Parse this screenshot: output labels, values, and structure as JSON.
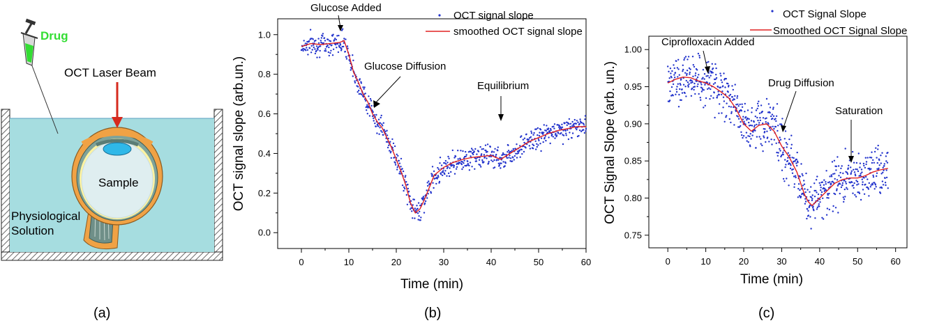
{
  "panel_a": {
    "drug_label": "Drug",
    "beam_label": "OCT Laser Beam",
    "sample_label": "Sample",
    "solution_label_1": "Physiological",
    "solution_label_2": "Solution",
    "panel_label": "(a)",
    "colors": {
      "drug": "#33dd33",
      "beam": "#d62a1e",
      "solution": "#a6dde0",
      "eye_outer": "#f0a245",
      "lens": "#2fb8e8"
    }
  },
  "chart_data": [
    {
      "type": "scatter",
      "panel_label": "(b)",
      "xlabel": "Time (min)",
      "ylabel": "OCT signal slope (arb.un.)",
      "xlim": [
        -5,
        60
      ],
      "ylim": [
        -0.08,
        1.08
      ],
      "xticks": [
        0,
        10,
        20,
        30,
        40,
        50,
        60
      ],
      "yticks": [
        0.0,
        0.2,
        0.4,
        0.6,
        0.8,
        1.0
      ],
      "ytick_labels": [
        "0.0",
        "0.2",
        "0.4",
        "0.6",
        "0.8",
        "1.0"
      ],
      "legend": {
        "placement": "top-right",
        "entries": [
          "OCT signal slope",
          "smoothed OCT signal slope"
        ]
      },
      "annotations": [
        {
          "text": "Glucose Added",
          "x": 9.5,
          "y": 0.98
        },
        {
          "text": "Glucose Diffusion",
          "x": 18,
          "y": 0.6
        },
        {
          "text": "Equilibrium",
          "x": 46,
          "y": 0.53
        }
      ],
      "series": [
        {
          "kind": "scatter",
          "color": "#2233cc",
          "noise": 0.028
        },
        {
          "kind": "line",
          "color": "#e02020",
          "x": [
            0,
            2,
            4,
            6,
            8,
            9,
            10,
            11,
            12,
            13,
            14,
            15,
            16,
            17,
            18,
            19,
            20,
            21,
            22,
            23,
            24,
            25,
            26,
            27,
            28,
            30,
            32,
            34,
            36,
            38,
            40,
            42,
            44,
            46,
            48,
            50,
            52,
            54,
            56,
            58,
            60
          ],
          "y": [
            0.94,
            0.955,
            0.95,
            0.955,
            0.96,
            0.97,
            0.9,
            0.81,
            0.76,
            0.7,
            0.66,
            0.6,
            0.56,
            0.53,
            0.48,
            0.43,
            0.37,
            0.31,
            0.24,
            0.15,
            0.1,
            0.12,
            0.17,
            0.23,
            0.29,
            0.33,
            0.355,
            0.37,
            0.38,
            0.385,
            0.39,
            0.37,
            0.4,
            0.43,
            0.46,
            0.48,
            0.5,
            0.515,
            0.525,
            0.535,
            0.535
          ]
        }
      ]
    },
    {
      "type": "scatter",
      "panel_label": "(c)",
      "xlabel": "Time (min)",
      "ylabel": "OCT Signal Slope (arb. un.)",
      "xlim": [
        -5,
        63
      ],
      "ylim": [
        0.733,
        1.018
      ],
      "xticks": [
        0,
        10,
        20,
        30,
        40,
        50,
        60
      ],
      "yticks": [
        0.75,
        0.8,
        0.85,
        0.9,
        0.95,
        1.0
      ],
      "ytick_labels": [
        "0.75",
        "0.80",
        "0.85",
        "0.90",
        "0.95",
        "1.00"
      ],
      "legend": {
        "placement": "top-right",
        "entries": [
          "OCT Signal Slope",
          "Smoothed OCT Signal Slope"
        ]
      },
      "annotations": [
        {
          "text": "Ciprofloxacin Added",
          "x": 11,
          "y": 0.96
        },
        {
          "text": "Drug Diffusion",
          "x": 30.5,
          "y": 0.895
        },
        {
          "text": "Saturation",
          "x": 49,
          "y": 0.838
        }
      ],
      "series": [
        {
          "kind": "scatter",
          "color": "#2233cc",
          "noise": 0.016
        },
        {
          "kind": "line",
          "color": "#e02020",
          "x": [
            0,
            2,
            4,
            6,
            8,
            10,
            12,
            14,
            16,
            18,
            20,
            22,
            24,
            26,
            28,
            29,
            30,
            32,
            34,
            35,
            36,
            37,
            38,
            40,
            42,
            44,
            46,
            48,
            50,
            52,
            54,
            56,
            58
          ],
          "y": [
            0.955,
            0.96,
            0.963,
            0.962,
            0.958,
            0.955,
            0.95,
            0.943,
            0.935,
            0.92,
            0.9,
            0.89,
            0.898,
            0.9,
            0.89,
            0.88,
            0.87,
            0.855,
            0.835,
            0.82,
            0.805,
            0.795,
            0.79,
            0.8,
            0.81,
            0.82,
            0.825,
            0.827,
            0.827,
            0.83,
            0.835,
            0.838,
            0.84
          ]
        }
      ]
    }
  ]
}
